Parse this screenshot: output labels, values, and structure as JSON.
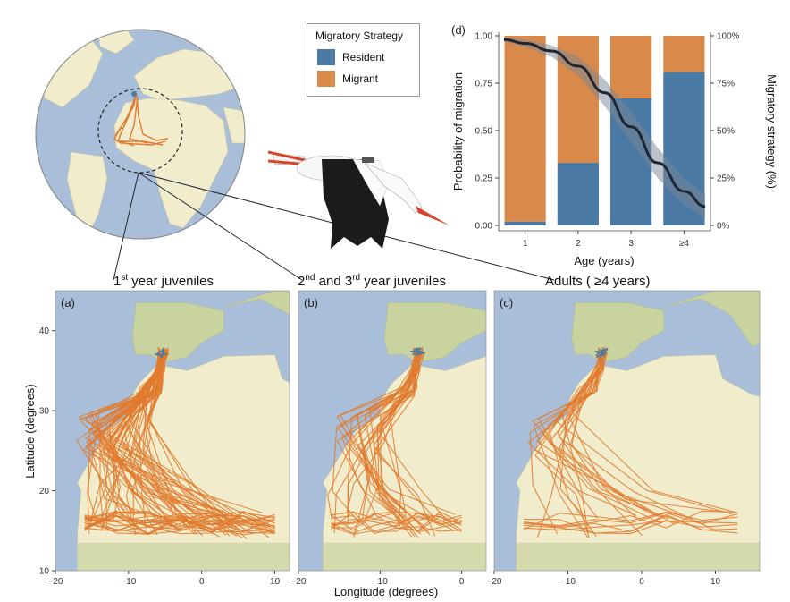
{
  "chart_data": [
    {
      "id": "d",
      "type": "bar",
      "panel_label": "(d)",
      "xlabel": "Age (years)",
      "ylabel": "Probability of migration",
      "ylabel_right": "Migratory strategy (%)",
      "categories": [
        "1",
        "2",
        "3",
        "≥4"
      ],
      "ylim": [
        0,
        1
      ],
      "yticks": [
        "0.00",
        "0.25",
        "0.50",
        "0.75",
        "1.00"
      ],
      "yticks_right": [
        "0%",
        "25%",
        "50%",
        "75%",
        "100%"
      ],
      "stacked": true,
      "series": [
        {
          "name": "Resident",
          "values": [
            0.02,
            0.33,
            0.67,
            0.81
          ]
        },
        {
          "name": "Migrant",
          "values": [
            0.98,
            0.67,
            0.33,
            0.19
          ]
        }
      ],
      "curve": {
        "x": [
          0.6,
          1.0,
          1.5,
          2.0,
          2.5,
          3.0,
          3.5,
          4.0,
          4.4
        ],
        "y": [
          0.98,
          0.96,
          0.92,
          0.84,
          0.7,
          0.52,
          0.33,
          0.18,
          0.1
        ],
        "ci_half_width": [
          0.01,
          0.02,
          0.03,
          0.05,
          0.07,
          0.08,
          0.08,
          0.07,
          0.06
        ]
      },
      "grid": false
    },
    {
      "id": "maps",
      "type": "scatter",
      "xlabel": "Longitude (degrees)",
      "ylabel": "Latitude (degrees)",
      "ylim": [
        10,
        45
      ],
      "yticks": [
        "10",
        "20",
        "30",
        "40"
      ],
      "xticks": [
        "−20",
        "−10",
        "0",
        "10"
      ],
      "panels": [
        {
          "label": "(a)",
          "title_main": "1",
          "title_sup": "st",
          "title_rest": " year juveniles",
          "xlim": [
            -20,
            12
          ]
        },
        {
          "label": "(b)",
          "title_main": "2",
          "title_sup": "nd",
          "title_mid": " and 3",
          "title_sup2": "rd",
          "title_rest": " year juveniles",
          "xlim": [
            -20,
            3
          ]
        },
        {
          "label": "(c)",
          "title_main": "Adults ( ≥4 years)",
          "xlim": [
            -20,
            16
          ]
        }
      ]
    }
  ],
  "legend": {
    "title": "Migratory Strategy",
    "items": [
      {
        "label": "Resident",
        "color": "#4a7aa4"
      },
      {
        "label": "Migrant",
        "color": "#d98a4a"
      }
    ]
  },
  "colors": {
    "resident": "#4a7aa4",
    "migrant": "#d98a4a",
    "track": "#e07a2e",
    "ocean": "#a9bfd9",
    "land": "#f1eccb",
    "land_green": "#c9d3a0",
    "curve": "#1f2633",
    "ci": "#7a8594"
  }
}
